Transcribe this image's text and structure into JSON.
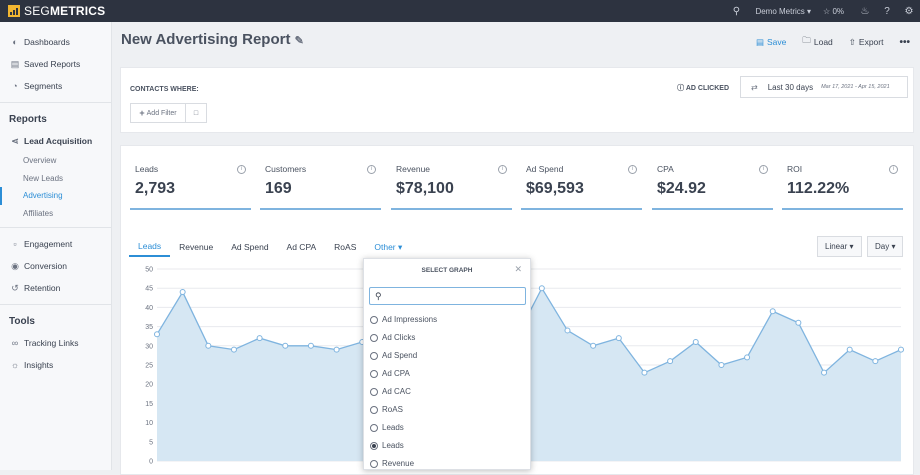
{
  "brand": {
    "name_prefix": "SEG",
    "name_suffix": "METRICS",
    "logo_color": "#f2b631"
  },
  "topbar": {
    "account": "Demo Metrics",
    "trophy_value": "0%"
  },
  "sidebar": {
    "items_top": [
      {
        "icon": "gauge-icon",
        "label": "Dashboards"
      },
      {
        "icon": "save-icon",
        "label": "Saved Reports"
      },
      {
        "icon": "pie-icon",
        "label": "Segments"
      }
    ],
    "reports_heading": "Reports",
    "lead_acquisition": "Lead Acquisition",
    "subitems": [
      "Overview",
      "New Leads",
      "Advertising",
      "Affiliates"
    ],
    "items_mid": [
      {
        "icon": "chat-icon",
        "label": "Engagement"
      },
      {
        "icon": "dollar-icon",
        "label": "Conversion"
      },
      {
        "icon": "retention-icon",
        "label": "Retention"
      }
    ],
    "tools_heading": "Tools",
    "tools": [
      {
        "icon": "link-icon",
        "label": "Tracking Links"
      },
      {
        "icon": "bulb-icon",
        "label": "Insights"
      }
    ]
  },
  "page": {
    "title": "New Advertising Report"
  },
  "actions": {
    "save": "Save",
    "load": "Load",
    "export": "Export"
  },
  "filters": {
    "label": "CONTACTS WHERE:",
    "add_filter": "Add Filter",
    "ad_clicked": "AD CLICKED",
    "range_label": "Last 30 days",
    "range_dates": "Mar 17, 2021 - Apr 15, 2021"
  },
  "kpis": [
    {
      "label": "Leads",
      "value": "2,793"
    },
    {
      "label": "Customers",
      "value": "169"
    },
    {
      "label": "Revenue",
      "value": "$78,100"
    },
    {
      "label": "Ad Spend",
      "value": "$69,593"
    },
    {
      "label": "CPA",
      "value": "$24.92"
    },
    {
      "label": "ROI",
      "value": "112.22%"
    }
  ],
  "tabs": [
    "Leads",
    "Revenue",
    "Ad Spend",
    "Ad CPA",
    "RoAS",
    "Other"
  ],
  "scale_select": "Linear",
  "interval_select": "Day",
  "dropdown": {
    "title": "SELECT GRAPH",
    "search_placeholder": "",
    "options": [
      "Ad Impressions",
      "Ad Clicks",
      "Ad Spend",
      "Ad CPA",
      "Ad CAC",
      "RoAS",
      "Leads",
      "Leads",
      "Revenue"
    ],
    "selected_index": 7
  },
  "chart_data": {
    "type": "area",
    "y_ticks": [
      "50",
      "45",
      "40",
      "35",
      "30",
      "25",
      "20",
      "15",
      "10",
      "5",
      "0"
    ],
    "ylim": [
      0,
      50
    ],
    "grid": true,
    "color": "#7fb4df",
    "values": [
      33,
      44,
      30,
      29,
      32,
      30,
      30,
      29,
      31,
      32,
      32,
      32,
      32,
      32,
      32,
      45,
      34,
      30,
      32,
      23,
      26,
      31,
      25,
      27,
      39,
      36,
      23,
      29,
      26,
      29
    ]
  }
}
